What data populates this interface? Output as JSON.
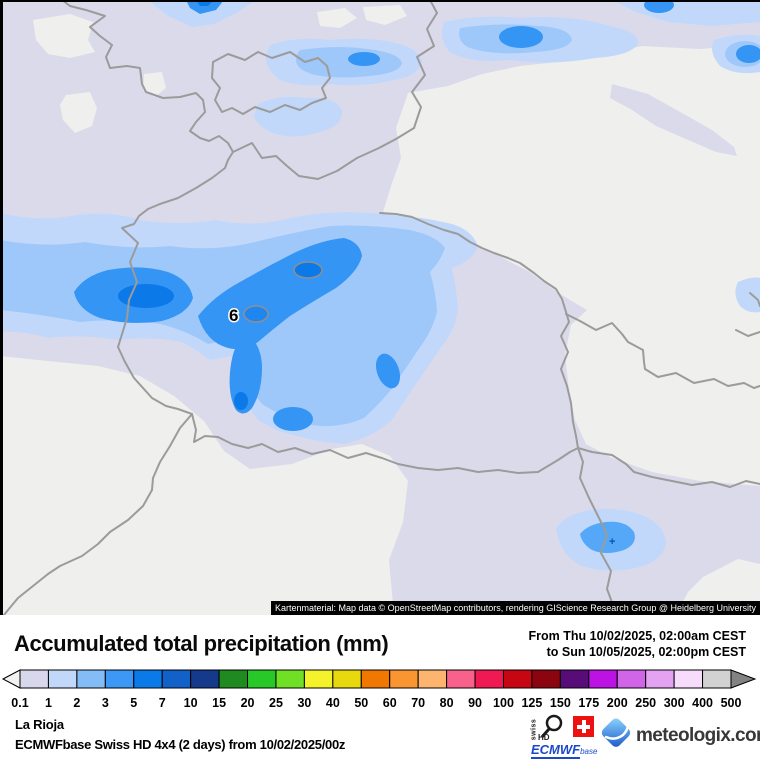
{
  "map": {
    "attribution": "Kartenmaterial: Map data © OpenStreetMap contributors, rendering GIScience Research Group @ Heidelberg University",
    "max_label": "6",
    "plus_marker": "+"
  },
  "header": {
    "title": "Accumulated total precipitation (mm)",
    "date_from": "From Thu 10/02/2025, 02:00am CEST",
    "date_to": "to Sun 10/05/2025, 02:00pm CEST"
  },
  "legend": {
    "ticks": [
      "0.1",
      "1",
      "2",
      "3",
      "5",
      "7",
      "10",
      "15",
      "20",
      "25",
      "30",
      "40",
      "50",
      "60",
      "70",
      "80",
      "90",
      "100",
      "125",
      "150",
      "175",
      "200",
      "250",
      "300",
      "400",
      "500"
    ],
    "colors": [
      "#d8d8ec",
      "#c2d8fa",
      "#84bcf8",
      "#3c98f4",
      "#0a7ae8",
      "#1261c8",
      "#15398b",
      "#1f8a1f",
      "#27c827",
      "#70e026",
      "#f4f32b",
      "#e8d90e",
      "#f07800",
      "#f99632",
      "#fcb46e",
      "#f8618a",
      "#f01a52",
      "#c70613",
      "#8b0511",
      "#570c77",
      "#bc12e4",
      "#d165e8",
      "#e3a3f2",
      "#f8dcfc",
      "#d2d2d2"
    ],
    "left_arrow_color": "#f2f2f2",
    "right_arrow_color": "#828282"
  },
  "footer": {
    "region": "La Rioja",
    "model_line": "ECMWFbase Swiss HD 4x4 (2 days) from 10/02/2025/00z"
  },
  "branding": {
    "swiss_vertical": "swiss",
    "hd": "HD",
    "ecmwf": "ECMWF",
    "ecmwf_sub": "base",
    "site": "meteologix.com"
  }
}
